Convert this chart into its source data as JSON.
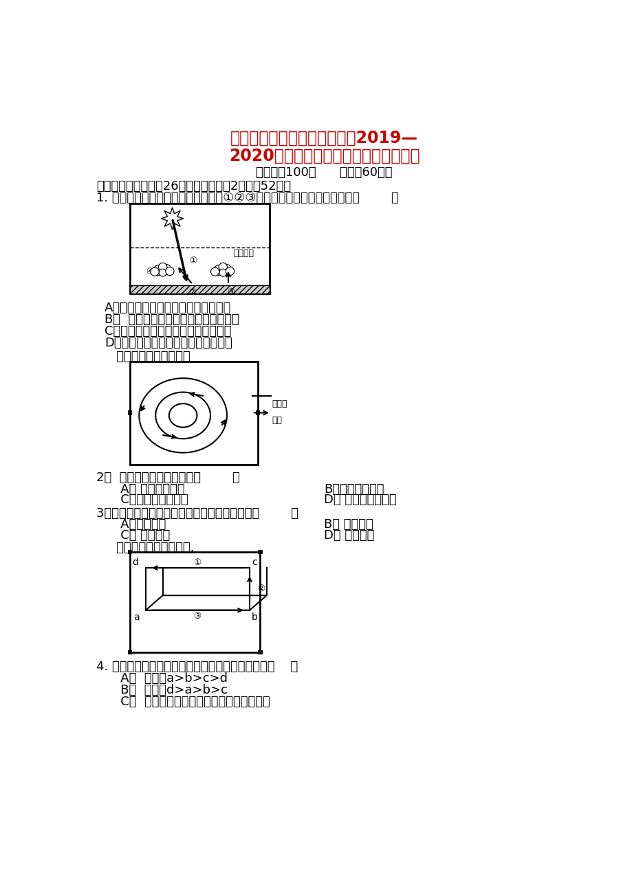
{
  "title_line1": "江西省南昌市新建县第一中学2019—",
  "title_line2": "2020学年高一地理上学期期末考试试题",
  "subtitle": "总分值：100分      时间：60分钟",
  "section1": "一、单选题（本题共26道小题，每小题2分，共52分）",
  "q1_text": "1. 读大气受热过程示意图，右下图中①②③三个箭头所代表的辐射依次是（        ）",
  "q1_A": "A．大气逆辐射、地面辐射、太阳辐射",
  "q1_B": "B。  太阳辐射、地面辐射、大气逆辐射",
  "q1_C": "C。地面辐射、大气逆辐射、太阳辐射",
  "q1_D": "D．太阳辐射、大气逆辐射、地面辐射",
  "read_fig": "   读图，完成下面小题。",
  "q2_text": "2。  图中表示的天气系统是（        ）",
  "q2_A": "   A。 南半球的气旋",
  "q2_B": "B．北半球的气旋",
  "q2_C": "   C．南半球的反气旋",
  "q2_D": "D。 北半球的反气旋",
  "q3_text": "3．在该天气系统控制下常常出现的天气状况是（        ）",
  "q3_A": "   A．阴雨连绵",
  "q3_B": "B。 低温暴雪",
  "q3_C": "   C。 大风沙暴",
  "q3_D": "D。 天气晴好",
  "read_right": "   读右图，完成下面小题.",
  "q4_text": "4. 若此图为热力环流侧视图，则下列说法正确的是（    ）",
  "q4_A": "   A。  温度：a>b>c>d",
  "q4_B": "   B。  气压：d>a>b>c",
  "q4_C": "   C。  引起该环流形成的原因是地面冷热不均",
  "title_color": "#cc0000",
  "text_color": "#000000",
  "bg_color": "#ffffff"
}
